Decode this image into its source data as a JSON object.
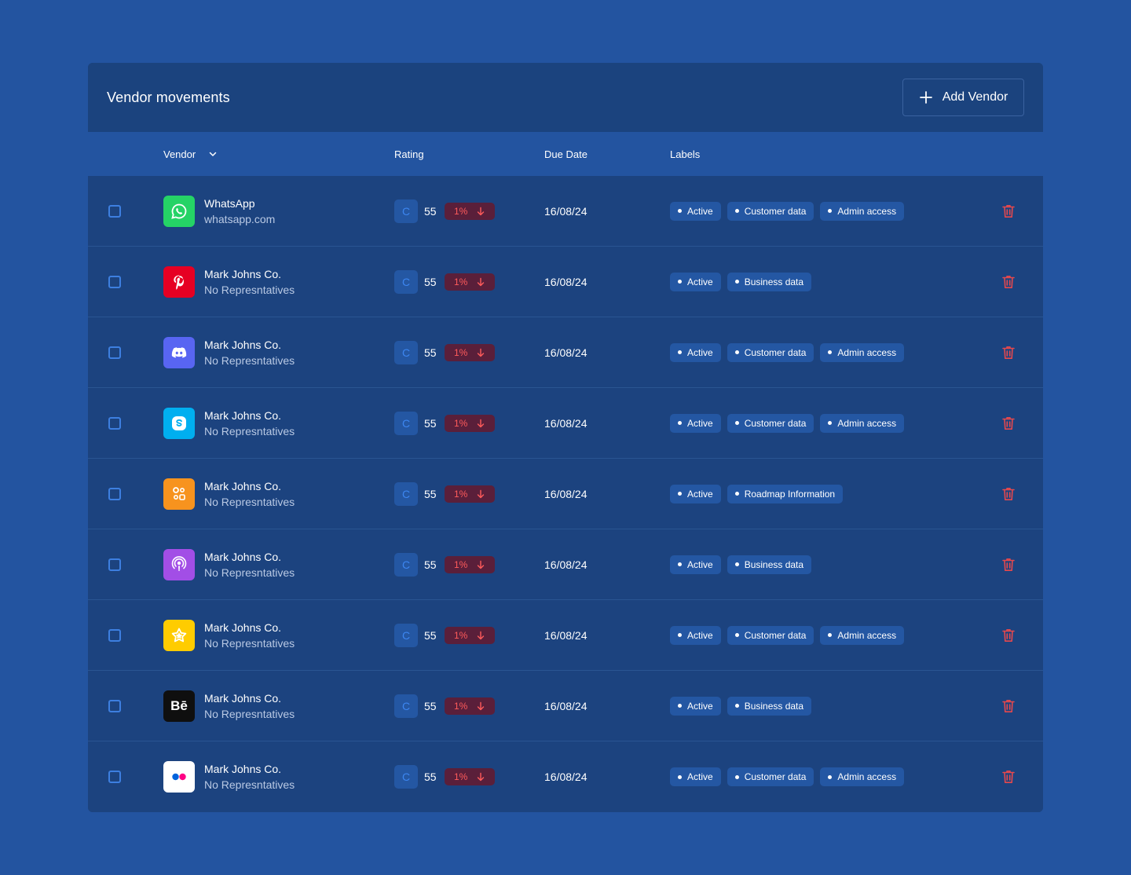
{
  "header": {
    "title": "Vendor movements",
    "add_button_label": "Add Vendor",
    "add_icon": "plus-icon"
  },
  "columns": {
    "vendor": "Vendor",
    "rating": "Rating",
    "due_date": "Due Date",
    "labels": "Labels"
  },
  "colors": {
    "page_bg": "#2354a0",
    "card_bg": "#1c437f",
    "tag_bg": "#2457a3",
    "danger": "#e5484d",
    "accent": "#3d86f0"
  },
  "rows": [
    {
      "logo": "whatsapp-icon",
      "logo_bg": "#25d366",
      "name": "WhatsApp",
      "sub": "whatsapp.com",
      "grade": "C",
      "score": "55",
      "change": "1%",
      "due": "16/08/24",
      "labels": [
        "Active",
        "Customer data",
        "Admin access"
      ]
    },
    {
      "logo": "pinterest-icon",
      "logo_bg": "#e60023",
      "name": "Mark Johns Co.",
      "sub": "No Represntatives",
      "grade": "C",
      "score": "55",
      "change": "1%",
      "due": "16/08/24",
      "labels": [
        "Active",
        "Business data"
      ]
    },
    {
      "logo": "discord-icon",
      "logo_bg": "#5865f2",
      "name": "Mark Johns Co.",
      "sub": "No Represntatives",
      "grade": "C",
      "score": "55",
      "change": "1%",
      "due": "16/08/24",
      "labels": [
        "Active",
        "Customer data",
        "Admin access"
      ]
    },
    {
      "logo": "skype-icon",
      "logo_bg": "#00aff0",
      "name": "Mark Johns Co.",
      "sub": "No Represntatives",
      "grade": "C",
      "score": "55",
      "change": "1%",
      "due": "16/08/24",
      "labels": [
        "Active",
        "Customer data",
        "Admin access"
      ]
    },
    {
      "logo": "ok-icon",
      "logo_bg": "#f7931e",
      "name": "Mark Johns Co.",
      "sub": "No Represntatives",
      "grade": "C",
      "score": "55",
      "change": "1%",
      "due": "16/08/24",
      "labels": [
        "Active",
        "Roadmap Information"
      ]
    },
    {
      "logo": "podcasts-icon",
      "logo_bg": "#a24ee6",
      "name": "Mark Johns Co.",
      "sub": "No Represntatives",
      "grade": "C",
      "score": "55",
      "change": "1%",
      "due": "16/08/24",
      "labels": [
        "Active",
        "Business data"
      ]
    },
    {
      "logo": "star-icon",
      "logo_bg": "#ffcc00",
      "name": "Mark Johns Co.",
      "sub": "No Represntatives",
      "grade": "C",
      "score": "55",
      "change": "1%",
      "due": "16/08/24",
      "labels": [
        "Active",
        "Customer data",
        "Admin access"
      ]
    },
    {
      "logo": "behance-icon",
      "logo_bg": "#0f0f0f",
      "logo_text": "Bē",
      "name": "Mark Johns Co.",
      "sub": "No Represntatives",
      "grade": "C",
      "score": "55",
      "change": "1%",
      "due": "16/08/24",
      "labels": [
        "Active",
        "Business data"
      ]
    },
    {
      "logo": "flickr-icon",
      "logo_bg": "#ffffff",
      "name": "Mark Johns Co.",
      "sub": "No Represntatives",
      "grade": "C",
      "score": "55",
      "change": "1%",
      "due": "16/08/24",
      "labels": [
        "Active",
        "Customer data",
        "Admin access"
      ]
    }
  ]
}
